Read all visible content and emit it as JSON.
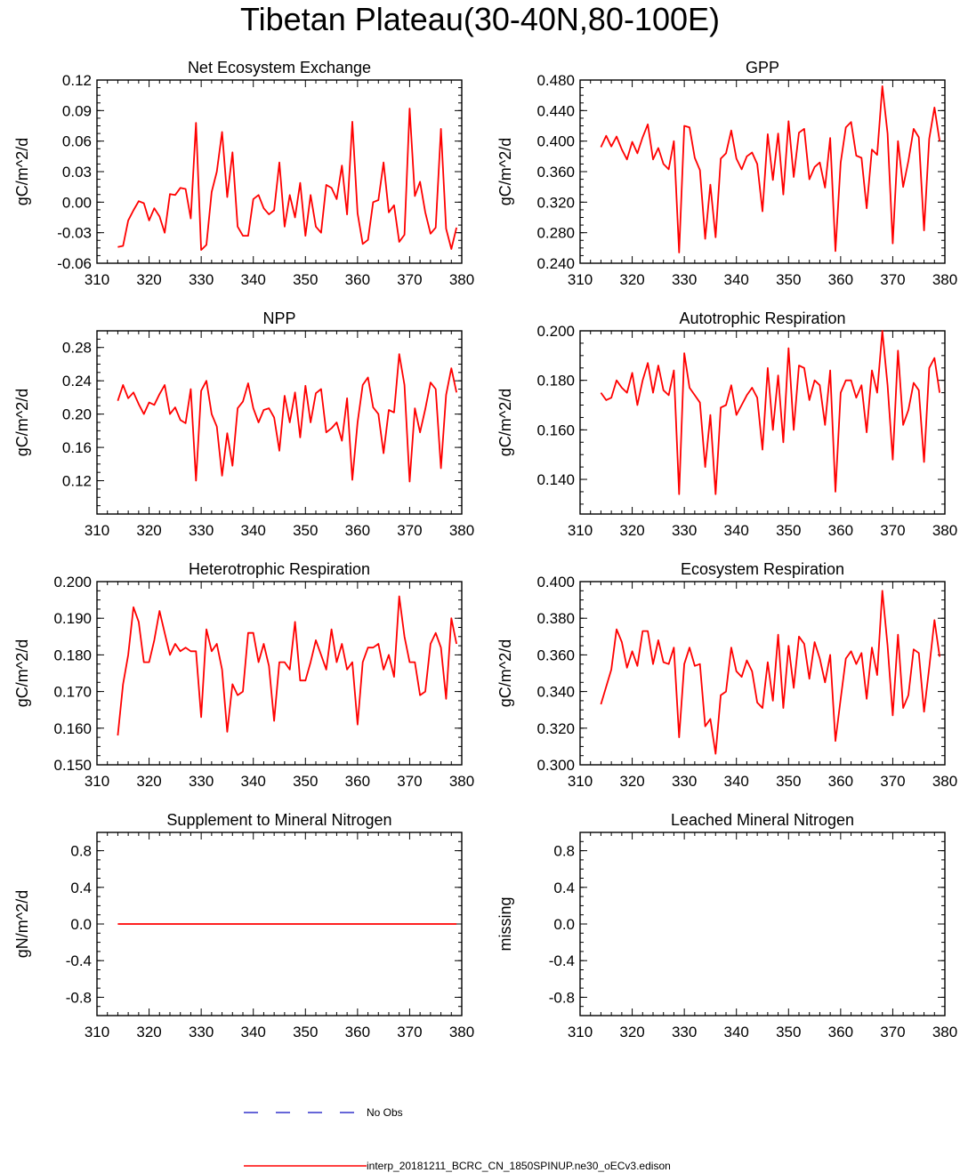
{
  "figure_title": "Tibetan Plateau(30-40N,80-100E)",
  "colors": {
    "model_line": "#ff0000",
    "obs_line": "#3333cc",
    "axis": "#000000"
  },
  "legend": {
    "obs_label": "No Obs",
    "model_label": "interp_20181211_BCRC_CN_1850SPINUP.ne30_oECv3.edison"
  },
  "chart_data": [
    {
      "type": "line",
      "title": "Net Ecosystem Exchange",
      "ylabel": "gC/m^2/d",
      "xlim": [
        310,
        380
      ],
      "ylim": [
        -0.06,
        0.12
      ],
      "xticks": [
        "310",
        "320",
        "330",
        "340",
        "350",
        "360",
        "370",
        "380"
      ],
      "yticks": [
        "-0.06",
        "-0.03",
        "0.00",
        "0.03",
        "0.06",
        "0.09",
        "0.12"
      ],
      "x": [
        314,
        315,
        316,
        317,
        318,
        319,
        320,
        321,
        322,
        323,
        324,
        325,
        326,
        327,
        328,
        329,
        330,
        331,
        332,
        333,
        334,
        335,
        336,
        337,
        338,
        339,
        340,
        341,
        342,
        343,
        344,
        345,
        346,
        347,
        348,
        349,
        350,
        351,
        352,
        353,
        354,
        355,
        356,
        357,
        358,
        359,
        360,
        361,
        362,
        363,
        364,
        365,
        366,
        367,
        368,
        369,
        370,
        371,
        372,
        373,
        374,
        375,
        376,
        377,
        378,
        379
      ],
      "series": [
        {
          "values": [
            -0.044,
            -0.043,
            -0.018,
            -0.008,
            0.001,
            -0.001,
            -0.018,
            -0.006,
            -0.014,
            -0.03,
            0.008,
            0.007,
            0.014,
            0.013,
            -0.016,
            0.078,
            -0.047,
            -0.042,
            0.01,
            0.03,
            0.069,
            0.005,
            0.049,
            -0.024,
            -0.033,
            -0.033,
            0.003,
            0.007,
            -0.006,
            -0.012,
            -0.008,
            0.039,
            -0.024,
            0.007,
            -0.015,
            0.019,
            -0.033,
            0.007,
            -0.024,
            -0.03,
            0.017,
            0.014,
            0.003,
            0.036,
            -0.012,
            0.079,
            -0.011,
            -0.041,
            -0.037,
            0.0,
            0.002,
            0.039,
            -0.01,
            -0.003,
            -0.039,
            -0.032,
            0.092,
            0.006,
            0.02,
            -0.01,
            -0.031,
            -0.025,
            0.072,
            -0.026,
            -0.046,
            -0.025
          ]
        }
      ]
    },
    {
      "type": "line",
      "title": "GPP",
      "ylabel": "gC/m^2/d",
      "xlim": [
        310,
        380
      ],
      "ylim": [
        0.24,
        0.48
      ],
      "xticks": [
        "310",
        "320",
        "330",
        "340",
        "350",
        "360",
        "370",
        "380"
      ],
      "yticks": [
        "0.240",
        "0.280",
        "0.320",
        "0.360",
        "0.400",
        "0.440",
        "0.480"
      ],
      "x": [
        314,
        315,
        316,
        317,
        318,
        319,
        320,
        321,
        322,
        323,
        324,
        325,
        326,
        327,
        328,
        329,
        330,
        331,
        332,
        333,
        334,
        335,
        336,
        337,
        338,
        339,
        340,
        341,
        342,
        343,
        344,
        345,
        346,
        347,
        348,
        349,
        350,
        351,
        352,
        353,
        354,
        355,
        356,
        357,
        358,
        359,
        360,
        361,
        362,
        363,
        364,
        365,
        366,
        367,
        368,
        369,
        370,
        371,
        372,
        373,
        374,
        375,
        376,
        377,
        378,
        379
      ],
      "series": [
        {
          "values": [
            0.392,
            0.407,
            0.393,
            0.406,
            0.389,
            0.376,
            0.399,
            0.384,
            0.405,
            0.422,
            0.376,
            0.391,
            0.37,
            0.363,
            0.4,
            0.254,
            0.42,
            0.418,
            0.378,
            0.362,
            0.272,
            0.343,
            0.274,
            0.377,
            0.384,
            0.414,
            0.377,
            0.363,
            0.38,
            0.385,
            0.37,
            0.308,
            0.409,
            0.349,
            0.41,
            0.33,
            0.426,
            0.353,
            0.411,
            0.416,
            0.35,
            0.366,
            0.372,
            0.339,
            0.404,
            0.256,
            0.372,
            0.418,
            0.425,
            0.381,
            0.378,
            0.312,
            0.389,
            0.382,
            0.472,
            0.41,
            0.266,
            0.4,
            0.34,
            0.374,
            0.416,
            0.405,
            0.283,
            0.403,
            0.444,
            0.4
          ]
        }
      ]
    },
    {
      "type": "line",
      "title": "NPP",
      "ylabel": "gC/m^2/d",
      "xlim": [
        310,
        380
      ],
      "ylim": [
        0.08,
        0.3
      ],
      "xticks": [
        "310",
        "320",
        "330",
        "340",
        "350",
        "360",
        "370",
        "380"
      ],
      "yticks": [
        "0.12",
        "0.16",
        "0.20",
        "0.24",
        "0.28"
      ],
      "x": [
        314,
        315,
        316,
        317,
        318,
        319,
        320,
        321,
        322,
        323,
        324,
        325,
        326,
        327,
        328,
        329,
        330,
        331,
        332,
        333,
        334,
        335,
        336,
        337,
        338,
        339,
        340,
        341,
        342,
        343,
        344,
        345,
        346,
        347,
        348,
        349,
        350,
        351,
        352,
        353,
        354,
        355,
        356,
        357,
        358,
        359,
        360,
        361,
        362,
        363,
        364,
        365,
        366,
        367,
        368,
        369,
        370,
        371,
        372,
        373,
        374,
        375,
        376,
        377,
        378,
        379
      ],
      "series": [
        {
          "values": [
            0.216,
            0.235,
            0.219,
            0.226,
            0.212,
            0.2,
            0.214,
            0.211,
            0.224,
            0.235,
            0.2,
            0.208,
            0.193,
            0.189,
            0.23,
            0.12,
            0.228,
            0.24,
            0.2,
            0.185,
            0.126,
            0.177,
            0.138,
            0.207,
            0.215,
            0.237,
            0.207,
            0.19,
            0.205,
            0.207,
            0.196,
            0.156,
            0.222,
            0.19,
            0.226,
            0.172,
            0.234,
            0.19,
            0.225,
            0.23,
            0.178,
            0.183,
            0.19,
            0.168,
            0.219,
            0.121,
            0.19,
            0.235,
            0.244,
            0.208,
            0.2,
            0.153,
            0.205,
            0.202,
            0.272,
            0.235,
            0.119,
            0.207,
            0.178,
            0.206,
            0.238,
            0.23,
            0.135,
            0.223,
            0.255,
            0.226
          ]
        }
      ]
    },
    {
      "type": "line",
      "title": "Autotrophic Respiration",
      "ylabel": "gC/m^2/d",
      "xlim": [
        310,
        380
      ],
      "ylim": [
        0.126,
        0.2
      ],
      "xticks": [
        "310",
        "320",
        "330",
        "340",
        "350",
        "360",
        "370",
        "380"
      ],
      "yticks": [
        "0.140",
        "0.160",
        "0.180",
        "0.200"
      ],
      "x": [
        314,
        315,
        316,
        317,
        318,
        319,
        320,
        321,
        322,
        323,
        324,
        325,
        326,
        327,
        328,
        329,
        330,
        331,
        332,
        333,
        334,
        335,
        336,
        337,
        338,
        339,
        340,
        341,
        342,
        343,
        344,
        345,
        346,
        347,
        348,
        349,
        350,
        351,
        352,
        353,
        354,
        355,
        356,
        357,
        358,
        359,
        360,
        361,
        362,
        363,
        364,
        365,
        366,
        367,
        368,
        369,
        370,
        371,
        372,
        373,
        374,
        375,
        376,
        377,
        378,
        379
      ],
      "series": [
        {
          "values": [
            0.175,
            0.172,
            0.173,
            0.18,
            0.177,
            0.175,
            0.183,
            0.17,
            0.18,
            0.187,
            0.175,
            0.186,
            0.176,
            0.174,
            0.184,
            0.134,
            0.191,
            0.177,
            0.174,
            0.171,
            0.145,
            0.166,
            0.134,
            0.169,
            0.17,
            0.178,
            0.166,
            0.17,
            0.174,
            0.177,
            0.173,
            0.152,
            0.185,
            0.16,
            0.182,
            0.155,
            0.193,
            0.16,
            0.186,
            0.185,
            0.172,
            0.18,
            0.178,
            0.162,
            0.184,
            0.135,
            0.175,
            0.18,
            0.18,
            0.173,
            0.178,
            0.159,
            0.184,
            0.175,
            0.2,
            0.178,
            0.148,
            0.192,
            0.162,
            0.168,
            0.179,
            0.176,
            0.147,
            0.185,
            0.189,
            0.175
          ]
        }
      ]
    },
    {
      "type": "line",
      "title": "Heterotrophic Respiration",
      "ylabel": "gC/m^2/d",
      "xlim": [
        310,
        380
      ],
      "ylim": [
        0.15,
        0.2
      ],
      "xticks": [
        "310",
        "320",
        "330",
        "340",
        "350",
        "360",
        "370",
        "380"
      ],
      "yticks": [
        "0.150",
        "0.160",
        "0.170",
        "0.180",
        "0.190",
        "0.200"
      ],
      "x": [
        314,
        315,
        316,
        317,
        318,
        319,
        320,
        321,
        322,
        323,
        324,
        325,
        326,
        327,
        328,
        329,
        330,
        331,
        332,
        333,
        334,
        335,
        336,
        337,
        338,
        339,
        340,
        341,
        342,
        343,
        344,
        345,
        346,
        347,
        348,
        349,
        350,
        351,
        352,
        353,
        354,
        355,
        356,
        357,
        358,
        359,
        360,
        361,
        362,
        363,
        364,
        365,
        366,
        367,
        368,
        369,
        370,
        371,
        372,
        373,
        374,
        375,
        376,
        377,
        378,
        379
      ],
      "series": [
        {
          "values": [
            0.158,
            0.172,
            0.18,
            0.193,
            0.189,
            0.178,
            0.178,
            0.184,
            0.192,
            0.186,
            0.18,
            0.183,
            0.181,
            0.182,
            0.181,
            0.181,
            0.163,
            0.187,
            0.181,
            0.183,
            0.176,
            0.159,
            0.172,
            0.169,
            0.17,
            0.186,
            0.186,
            0.178,
            0.183,
            0.177,
            0.162,
            0.178,
            0.178,
            0.176,
            0.189,
            0.173,
            0.173,
            0.178,
            0.184,
            0.18,
            0.176,
            0.187,
            0.178,
            0.183,
            0.176,
            0.178,
            0.161,
            0.178,
            0.182,
            0.182,
            0.183,
            0.176,
            0.18,
            0.174,
            0.196,
            0.185,
            0.178,
            0.178,
            0.169,
            0.17,
            0.183,
            0.186,
            0.182,
            0.168,
            0.19,
            0.183
          ]
        }
      ]
    },
    {
      "type": "line",
      "title": "Ecosystem Respiration",
      "ylabel": "gC/m^2/d",
      "xlim": [
        310,
        380
      ],
      "ylim": [
        0.3,
        0.4
      ],
      "xticks": [
        "310",
        "320",
        "330",
        "340",
        "350",
        "360",
        "370",
        "380"
      ],
      "yticks": [
        "0.300",
        "0.320",
        "0.340",
        "0.360",
        "0.380",
        "0.400"
      ],
      "x": [
        314,
        316,
        317,
        318,
        319,
        320,
        321,
        322,
        323,
        324,
        325,
        326,
        327,
        328,
        329,
        330,
        331,
        332,
        333,
        334,
        335,
        336,
        337,
        338,
        339,
        340,
        341,
        342,
        343,
        344,
        345,
        346,
        347,
        348,
        349,
        350,
        351,
        352,
        353,
        354,
        355,
        356,
        357,
        358,
        359,
        360,
        361,
        362,
        363,
        364,
        365,
        366,
        367,
        368,
        369,
        370,
        371,
        372,
        373,
        374,
        375,
        376,
        377,
        378,
        379
      ],
      "series": [
        {
          "values": [
            0.333,
            0.352,
            0.374,
            0.367,
            0.353,
            0.362,
            0.354,
            0.373,
            0.373,
            0.355,
            0.368,
            0.356,
            0.355,
            0.364,
            0.315,
            0.355,
            0.364,
            0.354,
            0.355,
            0.321,
            0.325,
            0.306,
            0.338,
            0.34,
            0.364,
            0.351,
            0.348,
            0.357,
            0.351,
            0.334,
            0.331,
            0.356,
            0.335,
            0.371,
            0.331,
            0.365,
            0.342,
            0.37,
            0.366,
            0.347,
            0.367,
            0.358,
            0.345,
            0.36,
            0.313,
            0.336,
            0.358,
            0.362,
            0.355,
            0.361,
            0.336,
            0.364,
            0.349,
            0.395,
            0.365,
            0.327,
            0.371,
            0.331,
            0.338,
            0.363,
            0.361,
            0.329,
            0.353,
            0.379,
            0.359
          ]
        }
      ]
    },
    {
      "type": "line",
      "title": "Supplement to Mineral Nitrogen",
      "ylabel": "gN/m^2/d",
      "xlim": [
        310,
        380
      ],
      "ylim": [
        -1.0,
        1.0
      ],
      "xticks": [
        "310",
        "320",
        "330",
        "340",
        "350",
        "360",
        "370",
        "380"
      ],
      "yticks": [
        "-0.8",
        "-0.4",
        "0.0",
        "0.4",
        "0.8"
      ],
      "x": [
        314,
        379
      ],
      "series": [
        {
          "values": [
            0.0,
            0.0
          ]
        }
      ]
    },
    {
      "type": "line",
      "title": "Leached Mineral Nitrogen",
      "ylabel": "missing",
      "xlim": [
        310,
        380
      ],
      "ylim": [
        -1.0,
        1.0
      ],
      "xticks": [
        "310",
        "320",
        "330",
        "340",
        "350",
        "360",
        "370",
        "380"
      ],
      "yticks": [
        "-0.8",
        "-0.4",
        "0.0",
        "0.4",
        "0.8"
      ],
      "x": [],
      "series": []
    }
  ]
}
